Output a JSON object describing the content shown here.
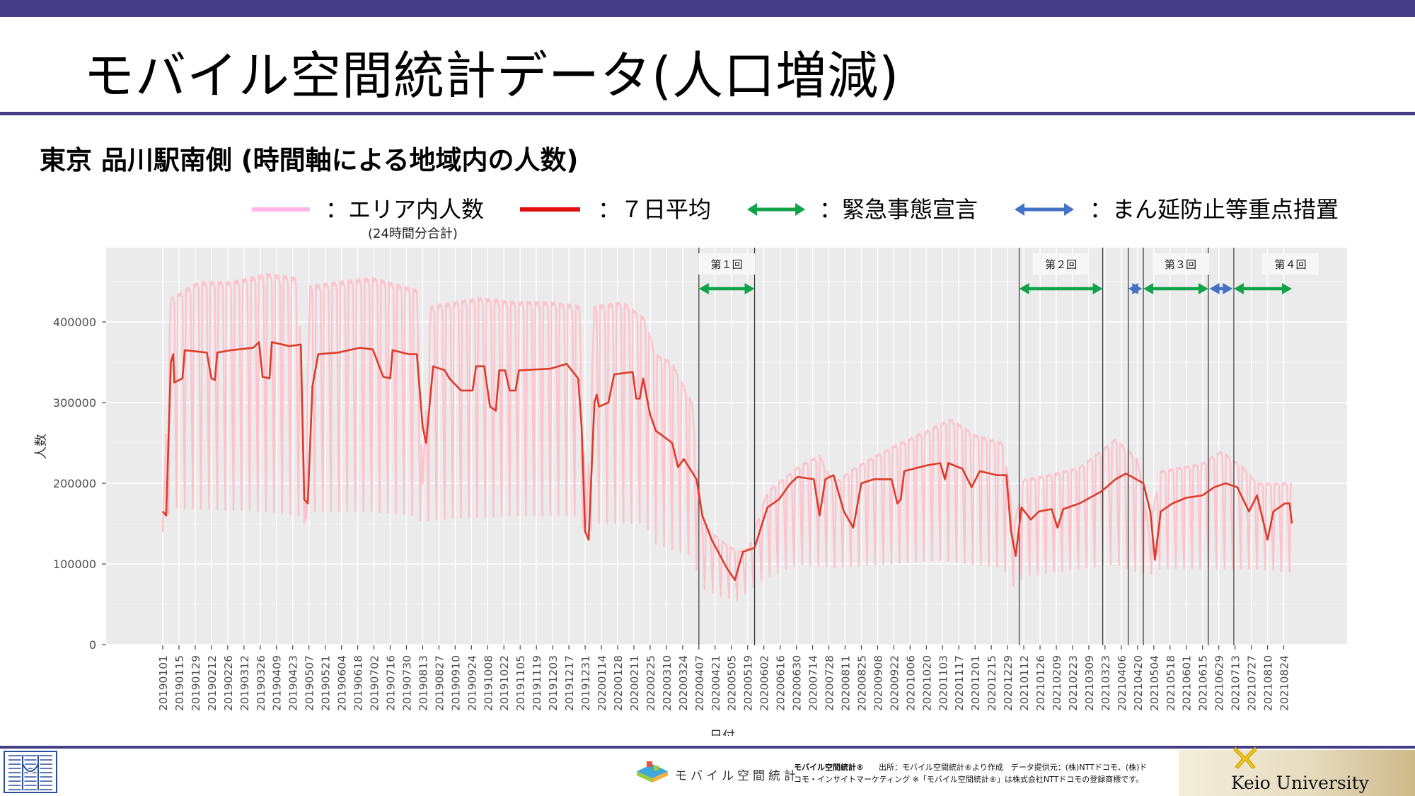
{
  "slide": {
    "title": "モバイル空間統計データ(人口増減)",
    "subtitle": "東京 品川駅南側 (時間軸による地域内の人数)"
  },
  "legend": {
    "area_label": "：エリア内人数",
    "area_note": "(24時間分合計)",
    "avg_label": "：７日平均",
    "emergency_label": "：緊急事態宣言",
    "priority_label": "：まん延防止等重点措置"
  },
  "colors": {
    "accent_bar": "#453e87",
    "area_line": "#ffc0cb",
    "avg_line": "#dd3b2a",
    "emergency": "#10a34a",
    "priority": "#4472c4",
    "panel": "#ebebeb"
  },
  "chart_data": {
    "type": "line",
    "xlabel": "日付",
    "ylabel": "人数",
    "ylim": [
      0,
      480000
    ],
    "yticks": [
      0,
      100000,
      200000,
      300000,
      400000
    ],
    "x_start": "20190101",
    "x_end": "20210831",
    "x_tick_labels": [
      "20190101",
      "20190115",
      "20190129",
      "20190212",
      "20190226",
      "20190312",
      "20190326",
      "20190409",
      "20190423",
      "20190507",
      "20190521",
      "20190604",
      "20190618",
      "20190702",
      "20190716",
      "20190730",
      "20190813",
      "20190827",
      "20190910",
      "20190924",
      "20191008",
      "20191022",
      "20191105",
      "20191119",
      "20191203",
      "20191217",
      "20191231",
      "20200114",
      "20200128",
      "20200211",
      "20200225",
      "20200310",
      "20200324",
      "20200407",
      "20200421",
      "20200505",
      "20200519",
      "20200602",
      "20200616",
      "20200630",
      "20200714",
      "20200728",
      "20200811",
      "20200825",
      "20200908",
      "20200922",
      "20201006",
      "20201020",
      "20201103",
      "20201117",
      "20201201",
      "20201215",
      "20201229",
      "20210112",
      "20210126",
      "20210209",
      "20210223",
      "20210309",
      "20210323",
      "20210406",
      "20210420",
      "20210504",
      "20210518",
      "20210601",
      "20210615",
      "20210629",
      "20210713",
      "20210727",
      "20210810",
      "20210824"
    ],
    "series": [
      {
        "name": "エリア内人数",
        "kind": "daily_weekly_cycle",
        "weekday_peak": [
          [
            "20190101",
            140000
          ],
          [
            "20190108",
            430000
          ],
          [
            "20190201",
            450000
          ],
          [
            "20190301",
            450000
          ],
          [
            "20190401",
            460000
          ],
          [
            "20190428",
            455000
          ],
          [
            "20190503",
            150000
          ],
          [
            "20190508",
            445000
          ],
          [
            "20190601",
            450000
          ],
          [
            "20190701",
            455000
          ],
          [
            "20190808",
            440000
          ],
          [
            "20190813",
            200000
          ],
          [
            "20190820",
            420000
          ],
          [
            "20191001",
            430000
          ],
          [
            "20191101",
            425000
          ],
          [
            "20191201",
            425000
          ],
          [
            "20191226",
            420000
          ],
          [
            "20200101",
            150000
          ],
          [
            "20200108",
            420000
          ],
          [
            "20200201",
            425000
          ],
          [
            "20200220",
            405000
          ],
          [
            "20200301",
            360000
          ],
          [
            "20200315",
            350000
          ],
          [
            "20200401",
            300000
          ],
          [
            "20200410",
            150000
          ],
          [
            "20200425",
            130000
          ],
          [
            "20200510",
            115000
          ],
          [
            "20200520",
            120000
          ],
          [
            "20200605",
            190000
          ],
          [
            "20200701",
            220000
          ],
          [
            "20200720",
            235000
          ],
          [
            "20200801",
            200000
          ],
          [
            "20200820",
            220000
          ],
          [
            "20200920",
            245000
          ],
          [
            "20201020",
            265000
          ],
          [
            "20201110",
            280000
          ],
          [
            "20201201",
            260000
          ],
          [
            "20201225",
            250000
          ],
          [
            "20210104",
            150000
          ],
          [
            "20210112",
            205000
          ],
          [
            "20210201",
            210000
          ],
          [
            "20210301",
            220000
          ],
          [
            "20210401",
            255000
          ],
          [
            "20210420",
            230000
          ],
          [
            "20210430",
            140000
          ],
          [
            "20210510",
            215000
          ],
          [
            "20210615",
            225000
          ],
          [
            "20210701",
            240000
          ],
          [
            "20210720",
            220000
          ],
          [
            "20210801",
            200000
          ],
          [
            "20210831",
            200000
          ]
        ],
        "weekend_low": [
          [
            "20190101",
            140000
          ],
          [
            "20190108",
            170000
          ],
          [
            "20190401",
            165000
          ],
          [
            "20190428",
            160000
          ],
          [
            "20190503",
            150000
          ],
          [
            "20190508",
            165000
          ],
          [
            "20190701",
            165000
          ],
          [
            "20190808",
            160000
          ],
          [
            "20190813",
            150000
          ],
          [
            "20190820",
            155000
          ],
          [
            "20191101",
            160000
          ],
          [
            "20191226",
            160000
          ],
          [
            "20200101",
            130000
          ],
          [
            "20200108",
            150000
          ],
          [
            "20200220",
            150000
          ],
          [
            "20200301",
            125000
          ],
          [
            "20200401",
            110000
          ],
          [
            "20200410",
            70000
          ],
          [
            "20200425",
            60000
          ],
          [
            "20200510",
            55000
          ],
          [
            "20200601",
            80000
          ],
          [
            "20200701",
            100000
          ],
          [
            "20200801",
            95000
          ],
          [
            "20201101",
            105000
          ],
          [
            "20201225",
            95000
          ],
          [
            "20210104",
            70000
          ],
          [
            "20210112",
            85000
          ],
          [
            "20210401",
            100000
          ],
          [
            "20210430",
            85000
          ],
          [
            "20210510",
            95000
          ],
          [
            "20210720",
            95000
          ],
          [
            "20210831",
            90000
          ]
        ]
      },
      {
        "name": "７日平均",
        "kind": "moving_average",
        "points": [
          [
            "20190101",
            165000
          ],
          [
            "20190104",
            160000
          ],
          [
            "20190108",
            350000
          ],
          [
            "20190110",
            360000
          ],
          [
            "20190111",
            325000
          ],
          [
            "20190118",
            330000
          ],
          [
            "20190120",
            365000
          ],
          [
            "20190208",
            362000
          ],
          [
            "20190212",
            330000
          ],
          [
            "20190215",
            328000
          ],
          [
            "20190217",
            362000
          ],
          [
            "20190301",
            365000
          ],
          [
            "20190320",
            368000
          ],
          [
            "20190325",
            375000
          ],
          [
            "20190328",
            332000
          ],
          [
            "20190403",
            330000
          ],
          [
            "20190405",
            375000
          ],
          [
            "20190420",
            370000
          ],
          [
            "20190430",
            372000
          ],
          [
            "20190503",
            180000
          ],
          [
            "20190506",
            175000
          ],
          [
            "20190510",
            320000
          ],
          [
            "20190515",
            360000
          ],
          [
            "20190601",
            362000
          ],
          [
            "20190620",
            368000
          ],
          [
            "20190701",
            366000
          ],
          [
            "20190710",
            332000
          ],
          [
            "20190716",
            330000
          ],
          [
            "20190718",
            365000
          ],
          [
            "20190801",
            360000
          ],
          [
            "20190808",
            360000
          ],
          [
            "20190813",
            270000
          ],
          [
            "20190816",
            250000
          ],
          [
            "20190822",
            345000
          ],
          [
            "20190901",
            340000
          ],
          [
            "20190905",
            330000
          ],
          [
            "20190915",
            315000
          ],
          [
            "20190925",
            315000
          ],
          [
            "20190928",
            345000
          ],
          [
            "20191005",
            345000
          ],
          [
            "20191010",
            295000
          ],
          [
            "20191015",
            290000
          ],
          [
            "20191018",
            340000
          ],
          [
            "20191023",
            340000
          ],
          [
            "20191027",
            315000
          ],
          [
            "20191101",
            315000
          ],
          [
            "20191104",
            340000
          ],
          [
            "20191201",
            342000
          ],
          [
            "20191215",
            348000
          ],
          [
            "20191225",
            330000
          ],
          [
            "20191228",
            270000
          ],
          [
            "20191231",
            140000
          ],
          [
            "20200103",
            130000
          ],
          [
            "20200108",
            300000
          ],
          [
            "20200110",
            310000
          ],
          [
            "20200112",
            295000
          ],
          [
            "20200120",
            300000
          ],
          [
            "20200125",
            335000
          ],
          [
            "20200210",
            338000
          ],
          [
            "20200213",
            305000
          ],
          [
            "20200216",
            305000
          ],
          [
            "20200219",
            330000
          ],
          [
            "20200225",
            285000
          ],
          [
            "20200301",
            265000
          ],
          [
            "20200315",
            250000
          ],
          [
            "20200320",
            220000
          ],
          [
            "20200325",
            230000
          ],
          [
            "20200405",
            205000
          ],
          [
            "20200410",
            160000
          ],
          [
            "20200418",
            130000
          ],
          [
            "20200501",
            95000
          ],
          [
            "20200508",
            80000
          ],
          [
            "20200515",
            115000
          ],
          [
            "20200525",
            120000
          ],
          [
            "20200605",
            170000
          ],
          [
            "20200615",
            180000
          ],
          [
            "20200625",
            200000
          ],
          [
            "20200701",
            208000
          ],
          [
            "20200715",
            205000
          ],
          [
            "20200720",
            160000
          ],
          [
            "20200725",
            205000
          ],
          [
            "20200801",
            210000
          ],
          [
            "20200810",
            165000
          ],
          [
            "20200818",
            145000
          ],
          [
            "20200825",
            200000
          ],
          [
            "20200905",
            205000
          ],
          [
            "20200920",
            205000
          ],
          [
            "20200925",
            175000
          ],
          [
            "20200928",
            180000
          ],
          [
            "20201001",
            215000
          ],
          [
            "20201020",
            222000
          ],
          [
            "20201101",
            225000
          ],
          [
            "20201105",
            205000
          ],
          [
            "20201108",
            225000
          ],
          [
            "20201120",
            218000
          ],
          [
            "20201128",
            195000
          ],
          [
            "20201205",
            215000
          ],
          [
            "20201220",
            210000
          ],
          [
            "20201228",
            210000
          ],
          [
            "20210101",
            140000
          ],
          [
            "20210105",
            110000
          ],
          [
            "20210110",
            170000
          ],
          [
            "20210118",
            155000
          ],
          [
            "20210125",
            165000
          ],
          [
            "20210205",
            168000
          ],
          [
            "20210210",
            145000
          ],
          [
            "20210215",
            168000
          ],
          [
            "20210301",
            175000
          ],
          [
            "20210320",
            190000
          ],
          [
            "20210401",
            205000
          ],
          [
            "20210410",
            212000
          ],
          [
            "20210425",
            200000
          ],
          [
            "20210501",
            165000
          ],
          [
            "20210505",
            105000
          ],
          [
            "20210510",
            165000
          ],
          [
            "20210520",
            175000
          ],
          [
            "20210601",
            182000
          ],
          [
            "20210615",
            185000
          ],
          [
            "20210625",
            195000
          ],
          [
            "20210705",
            200000
          ],
          [
            "20210715",
            195000
          ],
          [
            "20210720",
            180000
          ],
          [
            "20210725",
            165000
          ],
          [
            "20210801",
            185000
          ],
          [
            "20210810",
            130000
          ],
          [
            "20210815",
            165000
          ],
          [
            "20210825",
            175000
          ],
          [
            "20210829",
            175000
          ],
          [
            "20210831",
            150000
          ]
        ]
      }
    ],
    "annotations": [
      {
        "label": "第１回",
        "type": "emergency",
        "segments": [
          [
            "20200407",
            "20200525"
          ]
        ]
      },
      {
        "label": "第２回",
        "type": "emergency",
        "segments": [
          [
            "20210108",
            "20210321"
          ]
        ]
      },
      {
        "label": "第３回",
        "type": "mixed",
        "segments": [
          [
            "20210412",
            "20210424",
            "priority"
          ],
          [
            "20210425",
            "20210620",
            "emergency"
          ],
          [
            "20210621",
            "20210711",
            "priority"
          ]
        ]
      },
      {
        "label": "第４回",
        "type": "emergency",
        "segments": [
          [
            "20210712",
            "20210831"
          ]
        ]
      }
    ],
    "event_lines": [
      "20200407",
      "20200525",
      "20210108",
      "20210321",
      "20210412",
      "20210425",
      "20210620",
      "20210712"
    ],
    "grid": true,
    "legend_position": "top"
  },
  "footer": {
    "mobile_logo_text": "モバイル空間統計",
    "credit_brand": "モバイル空間統計®",
    "credit_line1": "出所：モバイル空間統計®より作成　データ提供元：(株)NTTドコモ、(株)ド",
    "credit_line2": "コモ・インサイトマーケティング ※「モバイル空間統計®」は株式会社NTTドコモの登録商標です。",
    "university": "Keio University"
  }
}
